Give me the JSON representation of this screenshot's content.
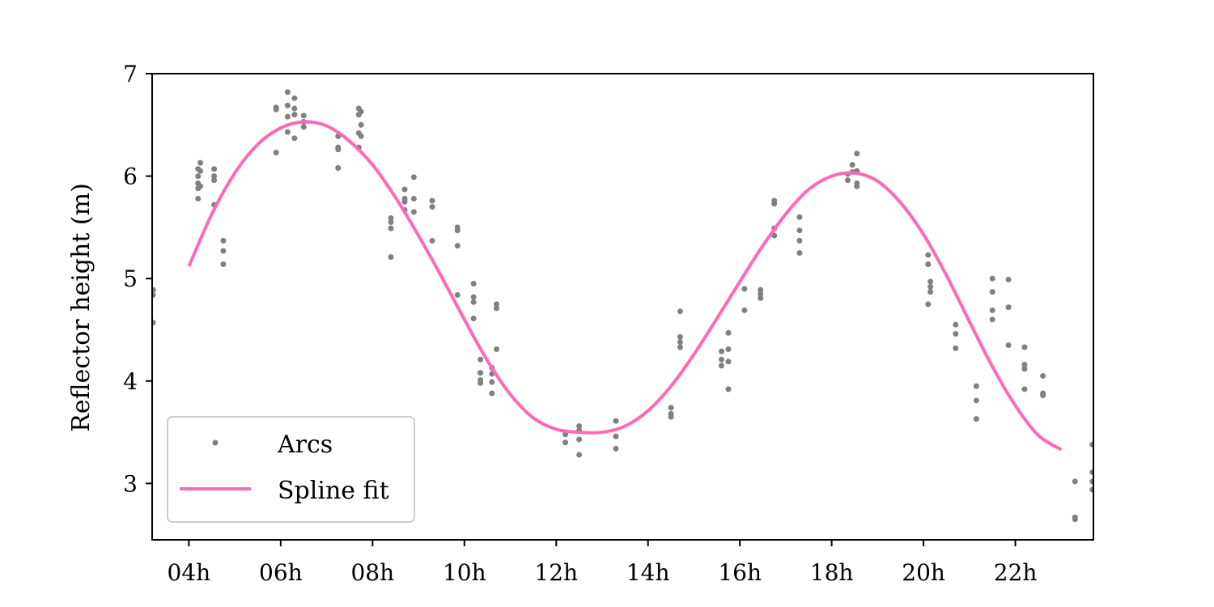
{
  "colors": {
    "arcs": "#808080",
    "spline": "#ff69b4",
    "axes": "#000000",
    "legend_border": "#cccccc"
  },
  "chart_data": {
    "type": "scatter",
    "title": "",
    "xlabel": "",
    "ylabel": "Reflector height (m)",
    "xlim": [
      3.2,
      23.7
    ],
    "ylim": [
      2.45,
      7.0
    ],
    "grid": false,
    "legend_position": "lower-left",
    "x_ticks": [
      4,
      6,
      8,
      10,
      12,
      14,
      16,
      18,
      20,
      22
    ],
    "x_tick_labels": [
      "04h",
      "06h",
      "08h",
      "10h",
      "12h",
      "14h",
      "16h",
      "18h",
      "20h",
      "22h"
    ],
    "y_ticks": [
      3,
      4,
      5,
      6,
      7
    ],
    "y_tick_labels": [
      "3",
      "4",
      "5",
      "6",
      "7"
    ],
    "series": [
      {
        "name": "Arcs",
        "kind": "scatter",
        "points": [
          [
            3.22,
            4.89
          ],
          [
            3.22,
            4.84
          ],
          [
            3.22,
            4.57
          ],
          [
            4.2,
            6.07
          ],
          [
            4.2,
            6.0
          ],
          [
            4.2,
            5.93
          ],
          [
            4.2,
            5.88
          ],
          [
            4.2,
            5.78
          ],
          [
            4.25,
            6.13
          ],
          [
            4.25,
            5.9
          ],
          [
            4.25,
            6.05
          ],
          [
            4.55,
            6.07
          ],
          [
            4.55,
            6.0
          ],
          [
            4.55,
            5.96
          ],
          [
            4.55,
            5.72
          ],
          [
            4.75,
            5.37
          ],
          [
            4.75,
            5.27
          ],
          [
            4.75,
            5.14
          ],
          [
            5.9,
            6.67
          ],
          [
            5.9,
            6.65
          ],
          [
            5.9,
            6.23
          ],
          [
            6.15,
            6.82
          ],
          [
            6.15,
            6.69
          ],
          [
            6.15,
            6.58
          ],
          [
            6.15,
            6.43
          ],
          [
            6.3,
            6.76
          ],
          [
            6.3,
            6.66
          ],
          [
            6.3,
            6.6
          ],
          [
            6.3,
            6.37
          ],
          [
            6.5,
            6.59
          ],
          [
            6.5,
            6.53
          ],
          [
            6.5,
            6.48
          ],
          [
            7.25,
            6.39
          ],
          [
            7.25,
            6.28
          ],
          [
            7.25,
            6.26
          ],
          [
            7.25,
            6.08
          ],
          [
            7.7,
            6.66
          ],
          [
            7.7,
            6.6
          ],
          [
            7.7,
            6.42
          ],
          [
            7.7,
            6.28
          ],
          [
            7.75,
            6.63
          ],
          [
            7.75,
            6.5
          ],
          [
            7.75,
            6.39
          ],
          [
            8.4,
            5.59
          ],
          [
            8.4,
            5.55
          ],
          [
            8.4,
            5.49
          ],
          [
            8.4,
            5.21
          ],
          [
            8.7,
            5.87
          ],
          [
            8.7,
            5.78
          ],
          [
            8.7,
            5.75
          ],
          [
            8.7,
            5.67
          ],
          [
            8.9,
            5.99
          ],
          [
            8.9,
            5.78
          ],
          [
            8.9,
            5.65
          ],
          [
            9.3,
            5.76
          ],
          [
            9.3,
            5.7
          ],
          [
            9.3,
            5.37
          ],
          [
            9.85,
            5.5
          ],
          [
            9.85,
            5.47
          ],
          [
            9.85,
            5.32
          ],
          [
            9.85,
            4.84
          ],
          [
            10.2,
            4.95
          ],
          [
            10.2,
            4.82
          ],
          [
            10.2,
            4.77
          ],
          [
            10.2,
            4.61
          ],
          [
            10.35,
            4.21
          ],
          [
            10.35,
            4.08
          ],
          [
            10.35,
            4.01
          ],
          [
            10.35,
            3.98
          ],
          [
            10.6,
            4.13
          ],
          [
            10.6,
            4.07
          ],
          [
            10.6,
            3.99
          ],
          [
            10.6,
            3.88
          ],
          [
            10.7,
            4.75
          ],
          [
            10.7,
            4.71
          ],
          [
            10.7,
            4.31
          ],
          [
            12.2,
            3.48
          ],
          [
            12.2,
            3.4
          ],
          [
            12.5,
            3.56
          ],
          [
            12.5,
            3.52
          ],
          [
            12.5,
            3.43
          ],
          [
            12.5,
            3.28
          ],
          [
            13.3,
            3.61
          ],
          [
            13.3,
            3.46
          ],
          [
            13.3,
            3.34
          ],
          [
            14.5,
            3.74
          ],
          [
            14.5,
            3.68
          ],
          [
            14.5,
            3.65
          ],
          [
            14.7,
            4.68
          ],
          [
            14.7,
            4.43
          ],
          [
            14.7,
            4.38
          ],
          [
            14.7,
            4.33
          ],
          [
            15.6,
            4.29
          ],
          [
            15.6,
            4.21
          ],
          [
            15.6,
            4.15
          ],
          [
            15.75,
            4.47
          ],
          [
            15.75,
            4.31
          ],
          [
            15.75,
            4.19
          ],
          [
            15.75,
            3.92
          ],
          [
            16.1,
            4.9
          ],
          [
            16.1,
            4.69
          ],
          [
            16.45,
            4.89
          ],
          [
            16.45,
            4.85
          ],
          [
            16.45,
            4.81
          ],
          [
            16.75,
            5.76
          ],
          [
            16.75,
            5.73
          ],
          [
            16.75,
            5.49
          ],
          [
            16.75,
            5.42
          ],
          [
            17.3,
            5.6
          ],
          [
            17.3,
            5.47
          ],
          [
            17.3,
            5.37
          ],
          [
            17.3,
            5.25
          ],
          [
            18.35,
            6.02
          ],
          [
            18.35,
            5.96
          ],
          [
            18.45,
            6.11
          ],
          [
            18.45,
            6.04
          ],
          [
            18.55,
            6.22
          ],
          [
            18.55,
            6.05
          ],
          [
            18.55,
            5.93
          ],
          [
            18.55,
            5.9
          ],
          [
            20.1,
            5.23
          ],
          [
            20.1,
            5.14
          ],
          [
            20.15,
            4.97
          ],
          [
            20.15,
            4.92
          ],
          [
            20.15,
            4.87
          ],
          [
            20.1,
            4.75
          ],
          [
            20.7,
            4.55
          ],
          [
            20.7,
            4.46
          ],
          [
            20.7,
            4.32
          ],
          [
            21.15,
            3.95
          ],
          [
            21.15,
            3.81
          ],
          [
            21.15,
            3.63
          ],
          [
            21.5,
            5.0
          ],
          [
            21.5,
            4.87
          ],
          [
            21.5,
            4.69
          ],
          [
            21.5,
            4.6
          ],
          [
            21.85,
            4.99
          ],
          [
            21.85,
            4.72
          ],
          [
            21.85,
            4.35
          ],
          [
            22.2,
            4.33
          ],
          [
            22.2,
            4.16
          ],
          [
            22.2,
            4.12
          ],
          [
            22.2,
            3.92
          ],
          [
            22.6,
            4.05
          ],
          [
            22.6,
            3.88
          ],
          [
            22.6,
            3.86
          ],
          [
            23.3,
            3.02
          ],
          [
            23.3,
            2.67
          ],
          [
            23.3,
            2.65
          ],
          [
            23.68,
            3.38
          ],
          [
            23.68,
            3.11
          ],
          [
            23.68,
            3.02
          ],
          [
            23.68,
            2.94
          ]
        ]
      },
      {
        "name": "Spline fit",
        "kind": "line",
        "points": [
          [
            4.0,
            5.12
          ],
          [
            4.5,
            5.63
          ],
          [
            5.0,
            6.03
          ],
          [
            5.5,
            6.31
          ],
          [
            6.0,
            6.47
          ],
          [
            6.5,
            6.53
          ],
          [
            7.0,
            6.49
          ],
          [
            7.5,
            6.34
          ],
          [
            8.0,
            6.11
          ],
          [
            8.5,
            5.79
          ],
          [
            9.0,
            5.42
          ],
          [
            9.5,
            5.02
          ],
          [
            10.0,
            4.6
          ],
          [
            10.5,
            4.2
          ],
          [
            11.0,
            3.87
          ],
          [
            11.5,
            3.64
          ],
          [
            12.0,
            3.53
          ],
          [
            12.5,
            3.5
          ],
          [
            13.0,
            3.5
          ],
          [
            13.5,
            3.56
          ],
          [
            14.0,
            3.71
          ],
          [
            14.5,
            3.95
          ],
          [
            15.0,
            4.26
          ],
          [
            15.5,
            4.61
          ],
          [
            16.0,
            4.97
          ],
          [
            16.5,
            5.32
          ],
          [
            17.0,
            5.63
          ],
          [
            17.5,
            5.87
          ],
          [
            18.0,
            6.0
          ],
          [
            18.5,
            6.03
          ],
          [
            19.0,
            5.95
          ],
          [
            19.5,
            5.74
          ],
          [
            20.0,
            5.43
          ],
          [
            20.5,
            5.03
          ],
          [
            21.0,
            4.58
          ],
          [
            21.5,
            4.14
          ],
          [
            22.0,
            3.76
          ],
          [
            22.5,
            3.47
          ],
          [
            23.0,
            3.33
          ]
        ]
      }
    ]
  }
}
